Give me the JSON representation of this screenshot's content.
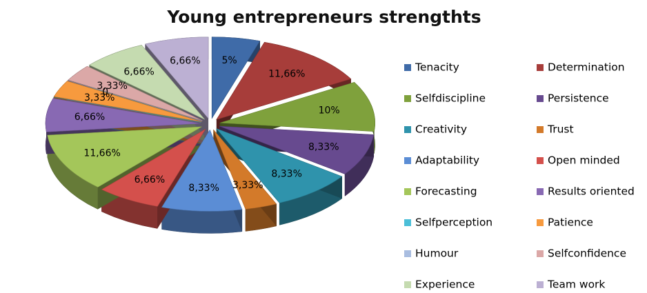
{
  "chart_data": {
    "type": "pie",
    "title": "Young entrepreneurs strengthts",
    "categories": [
      "Tenacity",
      "Determination",
      "Selfdiscipline",
      "Persistence",
      "Creativity",
      "Trust",
      "Adaptability",
      "Open minded",
      "Forecasting",
      "Results oriented",
      "Selfperception",
      "Patience",
      "Humour",
      "Selfconfidence",
      "Experience",
      "Team work"
    ],
    "values": [
      5,
      11.66,
      10,
      8.33,
      8.33,
      3.33,
      8.33,
      6.66,
      11.66,
      6.66,
      0,
      3.33,
      0,
      3.33,
      6.66,
      6.66
    ],
    "value_labels": [
      "5%",
      "11,66%",
      "10%",
      "8,33%",
      "8,33%",
      "3,33%",
      "8,33%",
      "6,66%",
      "11,66%",
      "6,66%",
      null,
      "3,33%",
      "0",
      "3,33%",
      "6,66%",
      "6,66%"
    ],
    "colors": [
      "#3f6ba8",
      "#a73d3a",
      "#7fa13c",
      "#674a8f",
      "#2f93ac",
      "#d37a2a",
      "#5b8dd5",
      "#d4504c",
      "#a4c65a",
      "#8869b3",
      "#4cbfd8",
      "#f79a3e",
      "#a9bde0",
      "#dba8a7",
      "#c5dbb0",
      "#bcb0d3"
    ],
    "legend": "right"
  }
}
